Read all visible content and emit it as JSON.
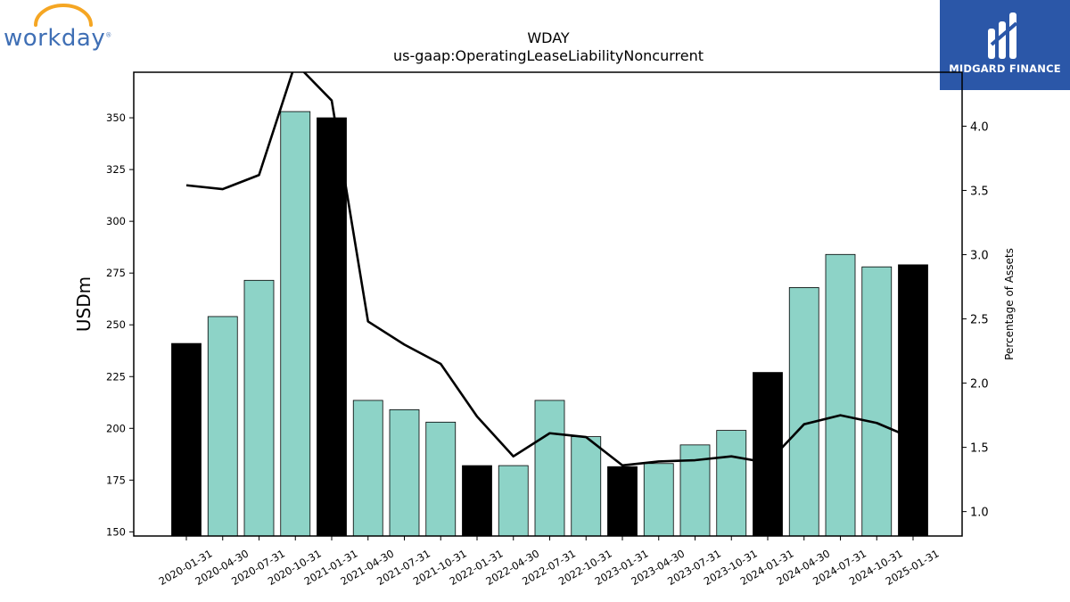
{
  "logos": {
    "left_text": "workday",
    "left_reg": "®",
    "right_text": "MIDGARD FINANCE",
    "arc_color": "#f5a623",
    "left_color": "#3f6fb5",
    "right_bg": "#2b57a8"
  },
  "chart_data": {
    "type": "bar",
    "title": "WDAY",
    "subtitle": "us-gaap:OperatingLeaseLiabilityNoncurrent",
    "ylabel": "USDm",
    "y2label": "Percentage of Assets",
    "ylim": [
      148,
      372
    ],
    "y2lim": [
      0.81,
      4.42
    ],
    "yticks": [
      "150",
      "175",
      "200",
      "225",
      "250",
      "275",
      "300",
      "325",
      "350"
    ],
    "y2ticks": [
      "1.0",
      "1.5",
      "2.0",
      "2.5",
      "3.0",
      "3.5",
      "4.0"
    ],
    "categories": [
      "2020-01-31",
      "2020-04-30",
      "2020-07-31",
      "2020-10-31",
      "2021-01-31",
      "2021-04-30",
      "2021-07-31",
      "2021-10-31",
      "2022-01-31",
      "2022-04-30",
      "2022-07-31",
      "2022-10-31",
      "2023-01-31",
      "2023-04-30",
      "2023-07-31",
      "2023-10-31",
      "2024-01-31",
      "2024-04-30",
      "2024-07-31",
      "2024-10-31",
      "2025-01-31"
    ],
    "values": [
      241,
      254,
      271.5,
      353,
      350,
      213.5,
      209,
      203,
      182,
      182,
      213.5,
      196,
      181.5,
      183,
      192,
      199,
      227,
      268,
      284,
      278,
      279
    ],
    "percent_of_assets": [
      3.54,
      3.51,
      3.62,
      4.49,
      4.2,
      2.48,
      2.3,
      2.15,
      1.74,
      1.43,
      1.61,
      1.58,
      1.36,
      1.39,
      1.4,
      1.43,
      1.38,
      1.68,
      1.75,
      1.69,
      1.57
    ],
    "fiscal_year_end": [
      true,
      false,
      false,
      false,
      true,
      false,
      false,
      false,
      true,
      false,
      false,
      false,
      true,
      false,
      false,
      false,
      true,
      false,
      false,
      false,
      true
    ],
    "colors": {
      "quarter_bar": "#8dd3c7",
      "year_bar": "#000000",
      "line": "#000000"
    },
    "grid": false,
    "legend": "none"
  }
}
